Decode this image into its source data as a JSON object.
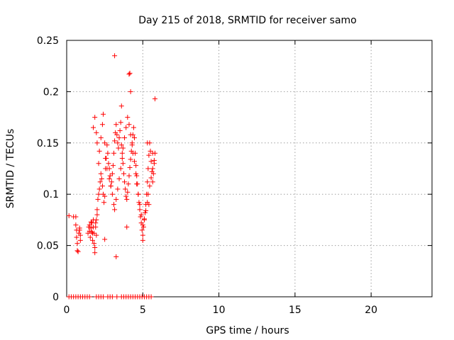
{
  "chart_data": {
    "type": "scatter",
    "title": "Day 215 of 2018, SRMTID for receiver samo",
    "xlabel": "GPS time / hours",
    "ylabel": "SRMTID / TECUs",
    "xlim": [
      0,
      24
    ],
    "ylim": [
      0,
      0.25
    ],
    "xticks": [
      0,
      5,
      10,
      15,
      20
    ],
    "xtick_labels": [
      "0",
      "5",
      "10",
      "15",
      "20"
    ],
    "yticks": [
      0,
      0.05,
      0.1,
      0.15,
      0.2,
      0.25
    ],
    "ytick_labels": [
      "0",
      "0.05",
      "0.1",
      "0.15",
      "0.2",
      "0.25"
    ],
    "grid": true,
    "marker": "+",
    "color": "#ff0000",
    "series": [
      {
        "name": "samo",
        "x": [
          0.15,
          0.3,
          0.45,
          0.6,
          0.75,
          0.9,
          1.05,
          1.2,
          1.35,
          1.5,
          1.95,
          2.1,
          2.25,
          2.4,
          2.7,
          2.85,
          3.0,
          3.3,
          3.6,
          3.75,
          3.9,
          4.05,
          4.2,
          4.35,
          4.5,
          4.65,
          4.8,
          4.95,
          5.1,
          5.25,
          5.4,
          5.55,
          0.15,
          0.45,
          0.6,
          0.6,
          0.65,
          0.65,
          0.7,
          0.7,
          0.75,
          0.8,
          0.85,
          0.85,
          0.9,
          0.9,
          1.4,
          1.45,
          1.5,
          1.5,
          1.55,
          1.6,
          1.6,
          1.65,
          1.65,
          1.7,
          1.7,
          1.75,
          1.75,
          1.8,
          1.8,
          1.85,
          1.85,
          1.9,
          1.9,
          1.95,
          1.95,
          2.0,
          2.0,
          2.05,
          2.1,
          2.15,
          2.2,
          2.25,
          2.3,
          2.35,
          2.4,
          2.45,
          2.5,
          2.55,
          2.6,
          2.65,
          2.7,
          2.75,
          2.8,
          2.85,
          2.9,
          2.95,
          3.0,
          3.05,
          3.1,
          3.15,
          3.2,
          3.25,
          3.3,
          3.35,
          3.4,
          3.45,
          3.5,
          3.55,
          3.6,
          3.65,
          3.7,
          3.75,
          3.8,
          3.85,
          3.9,
          3.95,
          4.0,
          4.05,
          4.1,
          4.15,
          4.2,
          4.25,
          4.3,
          4.35,
          4.4,
          4.45,
          4.5,
          4.55,
          4.6,
          4.65,
          4.7,
          4.75,
          4.8,
          4.85,
          4.9,
          4.95,
          5.0,
          5.05,
          5.1,
          5.15,
          5.2,
          5.25,
          5.3,
          5.35,
          5.4,
          5.45,
          5.5,
          5.55,
          5.6,
          5.65,
          5.7,
          5.75,
          5.8,
          1.75,
          1.85,
          1.95,
          2.0,
          2.1,
          2.15,
          2.25,
          2.35,
          2.4,
          2.5,
          2.55,
          2.65,
          2.8,
          2.9,
          3.0,
          3.1,
          3.15,
          3.25,
          3.35,
          3.45,
          3.55,
          3.65,
          3.7,
          3.8,
          3.9,
          4.0,
          4.1,
          4.2,
          4.3,
          4.35,
          4.45,
          4.55,
          4.6,
          4.7,
          4.8,
          4.9,
          5.0,
          5.1,
          5.2,
          5.3,
          5.35,
          5.45,
          5.55,
          5.65,
          5.75,
          3.15,
          4.1,
          4.15,
          4.2,
          2.5,
          3.25,
          3.6,
          3.95,
          5.0,
          5.3,
          5.4,
          5.65,
          5.8
        ],
        "y": [
          0,
          0,
          0,
          0,
          0,
          0,
          0,
          0,
          0,
          0,
          0,
          0,
          0,
          0,
          0,
          0,
          0,
          0,
          0,
          0,
          0,
          0,
          0,
          0,
          0,
          0,
          0,
          0,
          0,
          0,
          0,
          0,
          0.079,
          0.078,
          0.078,
          0.07,
          0.065,
          0.058,
          0.052,
          0.045,
          0.044,
          0.062,
          0.067,
          0.065,
          0.06,
          0.055,
          0.062,
          0.068,
          0.07,
          0.064,
          0.058,
          0.073,
          0.067,
          0.063,
          0.072,
          0.062,
          0.055,
          0.075,
          0.068,
          0.062,
          0.052,
          0.048,
          0.043,
          0.068,
          0.072,
          0.06,
          0.075,
          0.085,
          0.08,
          0.095,
          0.1,
          0.105,
          0.112,
          0.12,
          0.115,
          0.108,
          0.1,
          0.092,
          0.098,
          0.125,
          0.135,
          0.148,
          0.14,
          0.13,
          0.125,
          0.118,
          0.108,
          0.112,
          0.12,
          0.128,
          0.14,
          0.152,
          0.16,
          0.168,
          0.158,
          0.15,
          0.145,
          0.155,
          0.162,
          0.17,
          0.148,
          0.14,
          0.13,
          0.12,
          0.112,
          0.105,
          0.098,
          0.095,
          0.102,
          0.11,
          0.118,
          0.126,
          0.134,
          0.142,
          0.15,
          0.158,
          0.165,
          0.155,
          0.14,
          0.128,
          0.118,
          0.11,
          0.1,
          0.092,
          0.085,
          0.078,
          0.072,
          0.065,
          0.06,
          0.068,
          0.075,
          0.082,
          0.09,
          0.1,
          0.112,
          0.125,
          0.138,
          0.15,
          0.142,
          0.132,
          0.122,
          0.112,
          0.12,
          0.13,
          0.14,
          0.165,
          0.175,
          0.16,
          0.15,
          0.13,
          0.142,
          0.155,
          0.168,
          0.178,
          0.15,
          0.135,
          0.125,
          0.115,
          0.108,
          0.1,
          0.09,
          0.085,
          0.095,
          0.105,
          0.115,
          0.125,
          0.135,
          0.145,
          0.155,
          0.165,
          0.175,
          0.168,
          0.158,
          0.148,
          0.14,
          0.132,
          0.12,
          0.11,
          0.1,
          0.09,
          0.08,
          0.07,
          0.076,
          0.084,
          0.092,
          0.1,
          0.108,
          0.116,
          0.125,
          0.133,
          0.235,
          0.217,
          0.218,
          0.2,
          0.056,
          0.039,
          0.186,
          0.068,
          0.055,
          0.15,
          0.09,
          0.14,
          0.193
        ]
      }
    ]
  }
}
